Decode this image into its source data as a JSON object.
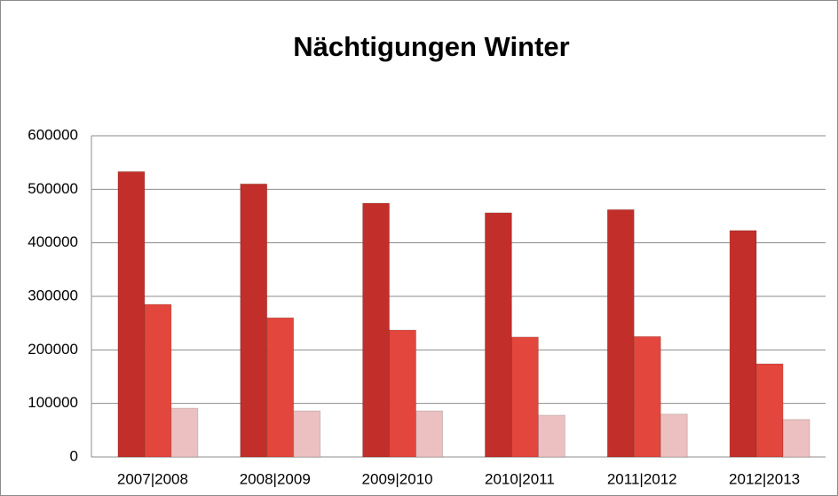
{
  "chart_data": {
    "type": "bar",
    "title": "Nächtigungen Winter",
    "categories": [
      "2007|2008",
      "2008|2009",
      "2009|2010",
      "2010|2011",
      "2011|2012",
      "2012|2013"
    ],
    "series": [
      {
        "color": "#c22f2a",
        "values": [
          533000,
          510000,
          474000,
          456000,
          462000,
          423000
        ]
      },
      {
        "color": "#e2463c",
        "values": [
          285000,
          260000,
          237000,
          224000,
          225000,
          174000
        ]
      },
      {
        "color": "#ecc0c0",
        "values": [
          91000,
          86000,
          86000,
          78000,
          80000,
          70000
        ]
      }
    ],
    "ylim": [
      0,
      600000
    ],
    "yticks": [
      0,
      100000,
      200000,
      300000,
      400000,
      500000,
      600000
    ],
    "grid": true
  }
}
